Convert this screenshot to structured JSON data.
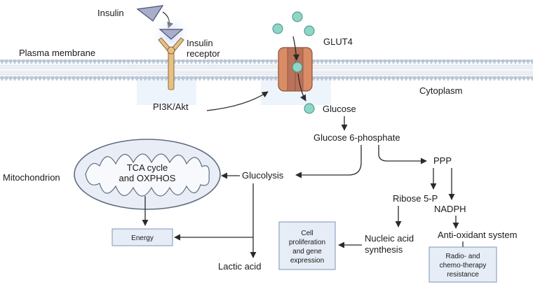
{
  "labels": {
    "insulin": "Insulin",
    "insulin_receptor_1": "Insulin",
    "insulin_receptor_2": "receptor",
    "glut4": "GLUT4",
    "plasma_membrane": "Plasma membrane",
    "cytoplasm": "Cytoplasm",
    "pi3k_akt": "PI3K/Akt",
    "glucose": "Glucose",
    "glucose_6_phosphate": "Glucose 6-phosphate",
    "ppp": "PPP",
    "glycolysis": "Glucolysis",
    "mitochondrion": "Mitochondrion",
    "tca_line1": "TCA cycle",
    "tca_line2": "and OXPHOS",
    "ribose_5p": "Ribose 5-P",
    "nadph": "NADPH",
    "lactic_acid": "Lactic acid",
    "nucleic_line1": "Nucleic acid",
    "nucleic_line2": "synthesis",
    "antioxidant": "Anti-oxidant system"
  },
  "boxes": {
    "energy": "Energy",
    "cell_prolif": [
      "Cell",
      "proliferation",
      "and gene",
      "expression"
    ],
    "resistance": [
      "Radio- and",
      "chemo-therapy",
      "resistance"
    ]
  },
  "colors": {
    "membrane_head": "#b9c7d6",
    "receptor": "#e6c184",
    "glut4": "#d98c66",
    "glucose": "#8fd6c8",
    "box_fill": "#e6edf6",
    "box_stroke": "#7d95b8"
  }
}
